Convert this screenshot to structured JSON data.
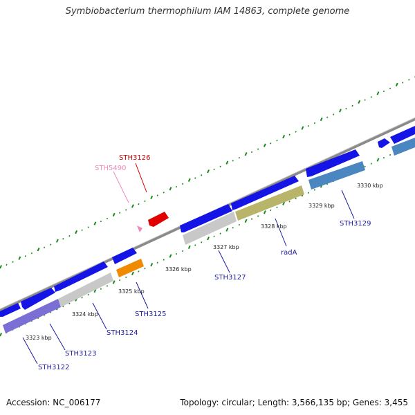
{
  "header": {
    "title": "Symbiobacterium thermophilum IAM 14863, complete genome"
  },
  "footer": {
    "accession": "Accession: NC_006177",
    "stats": "Topology: circular; Length: 3,566,135 bp; Genes: 3,455"
  },
  "ticks": [
    "3323 kbp",
    "3324 kbp",
    "3325 kbp",
    "3326 kbp",
    "3327 kbp",
    "3328 kbp",
    "3329 kbp",
    "3330 kbp"
  ],
  "genes": [
    {
      "name": "STH3122",
      "color": "#1a1aa0"
    },
    {
      "name": "STH3123",
      "color": "#1a1aa0"
    },
    {
      "name": "STH3124",
      "color": "#1a1aa0"
    },
    {
      "name": "STH3125",
      "color": "#1a1aa0"
    },
    {
      "name": "STH3126",
      "color": "#cc0000"
    },
    {
      "name": "STH5490",
      "color": "#ee88bb"
    },
    {
      "name": "STH3127",
      "color": "#1a1aa0"
    },
    {
      "name": "radA",
      "color": "#1a1aa0"
    },
    {
      "name": "STH3129",
      "color": "#1a1aa0"
    }
  ],
  "colors": {
    "cds_blue": "#1414e6",
    "cog_purple": "#7b6fd6",
    "cog_gray": "#c8c8c8",
    "cog_orange": "#f08a00",
    "cog_olive": "#b8b46a",
    "cog_steel": "#4a86c0",
    "rna_red": "#e00000",
    "backbone": "#8a8a8a",
    "dots": "#1a8a1a"
  }
}
